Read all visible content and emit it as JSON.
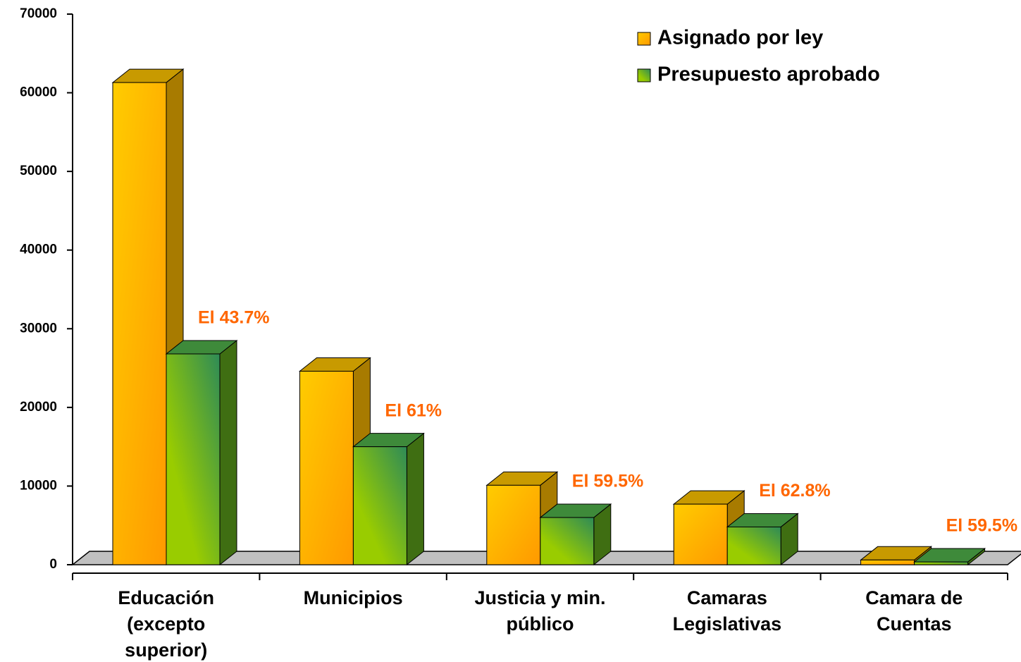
{
  "chart_data": {
    "type": "bar3d",
    "categories": [
      [
        "Educación",
        "(excepto",
        "superior)"
      ],
      [
        "Municipios"
      ],
      [
        "Justicia y min.",
        "público"
      ],
      [
        "Camaras",
        "Legislativas"
      ],
      [
        "Camara de",
        "Cuentas"
      ]
    ],
    "series": [
      {
        "name": "Asignado por ley",
        "color": "#ffb300",
        "values": [
          61300,
          24600,
          10100,
          7700,
          600
        ]
      },
      {
        "name": "Presupuesto aprobado",
        "color": "#7fbf1f",
        "values": [
          26800,
          15000,
          6000,
          4800,
          357
        ]
      }
    ],
    "annotations": [
      "El 43.7%",
      "El 61%",
      "El 59.5%",
      "El 62.8%",
      "El 59.5%"
    ],
    "ylim": [
      0,
      70000
    ],
    "yticks": [
      0,
      10000,
      20000,
      30000,
      40000,
      50000,
      60000,
      70000
    ],
    "legend": "top-right"
  }
}
